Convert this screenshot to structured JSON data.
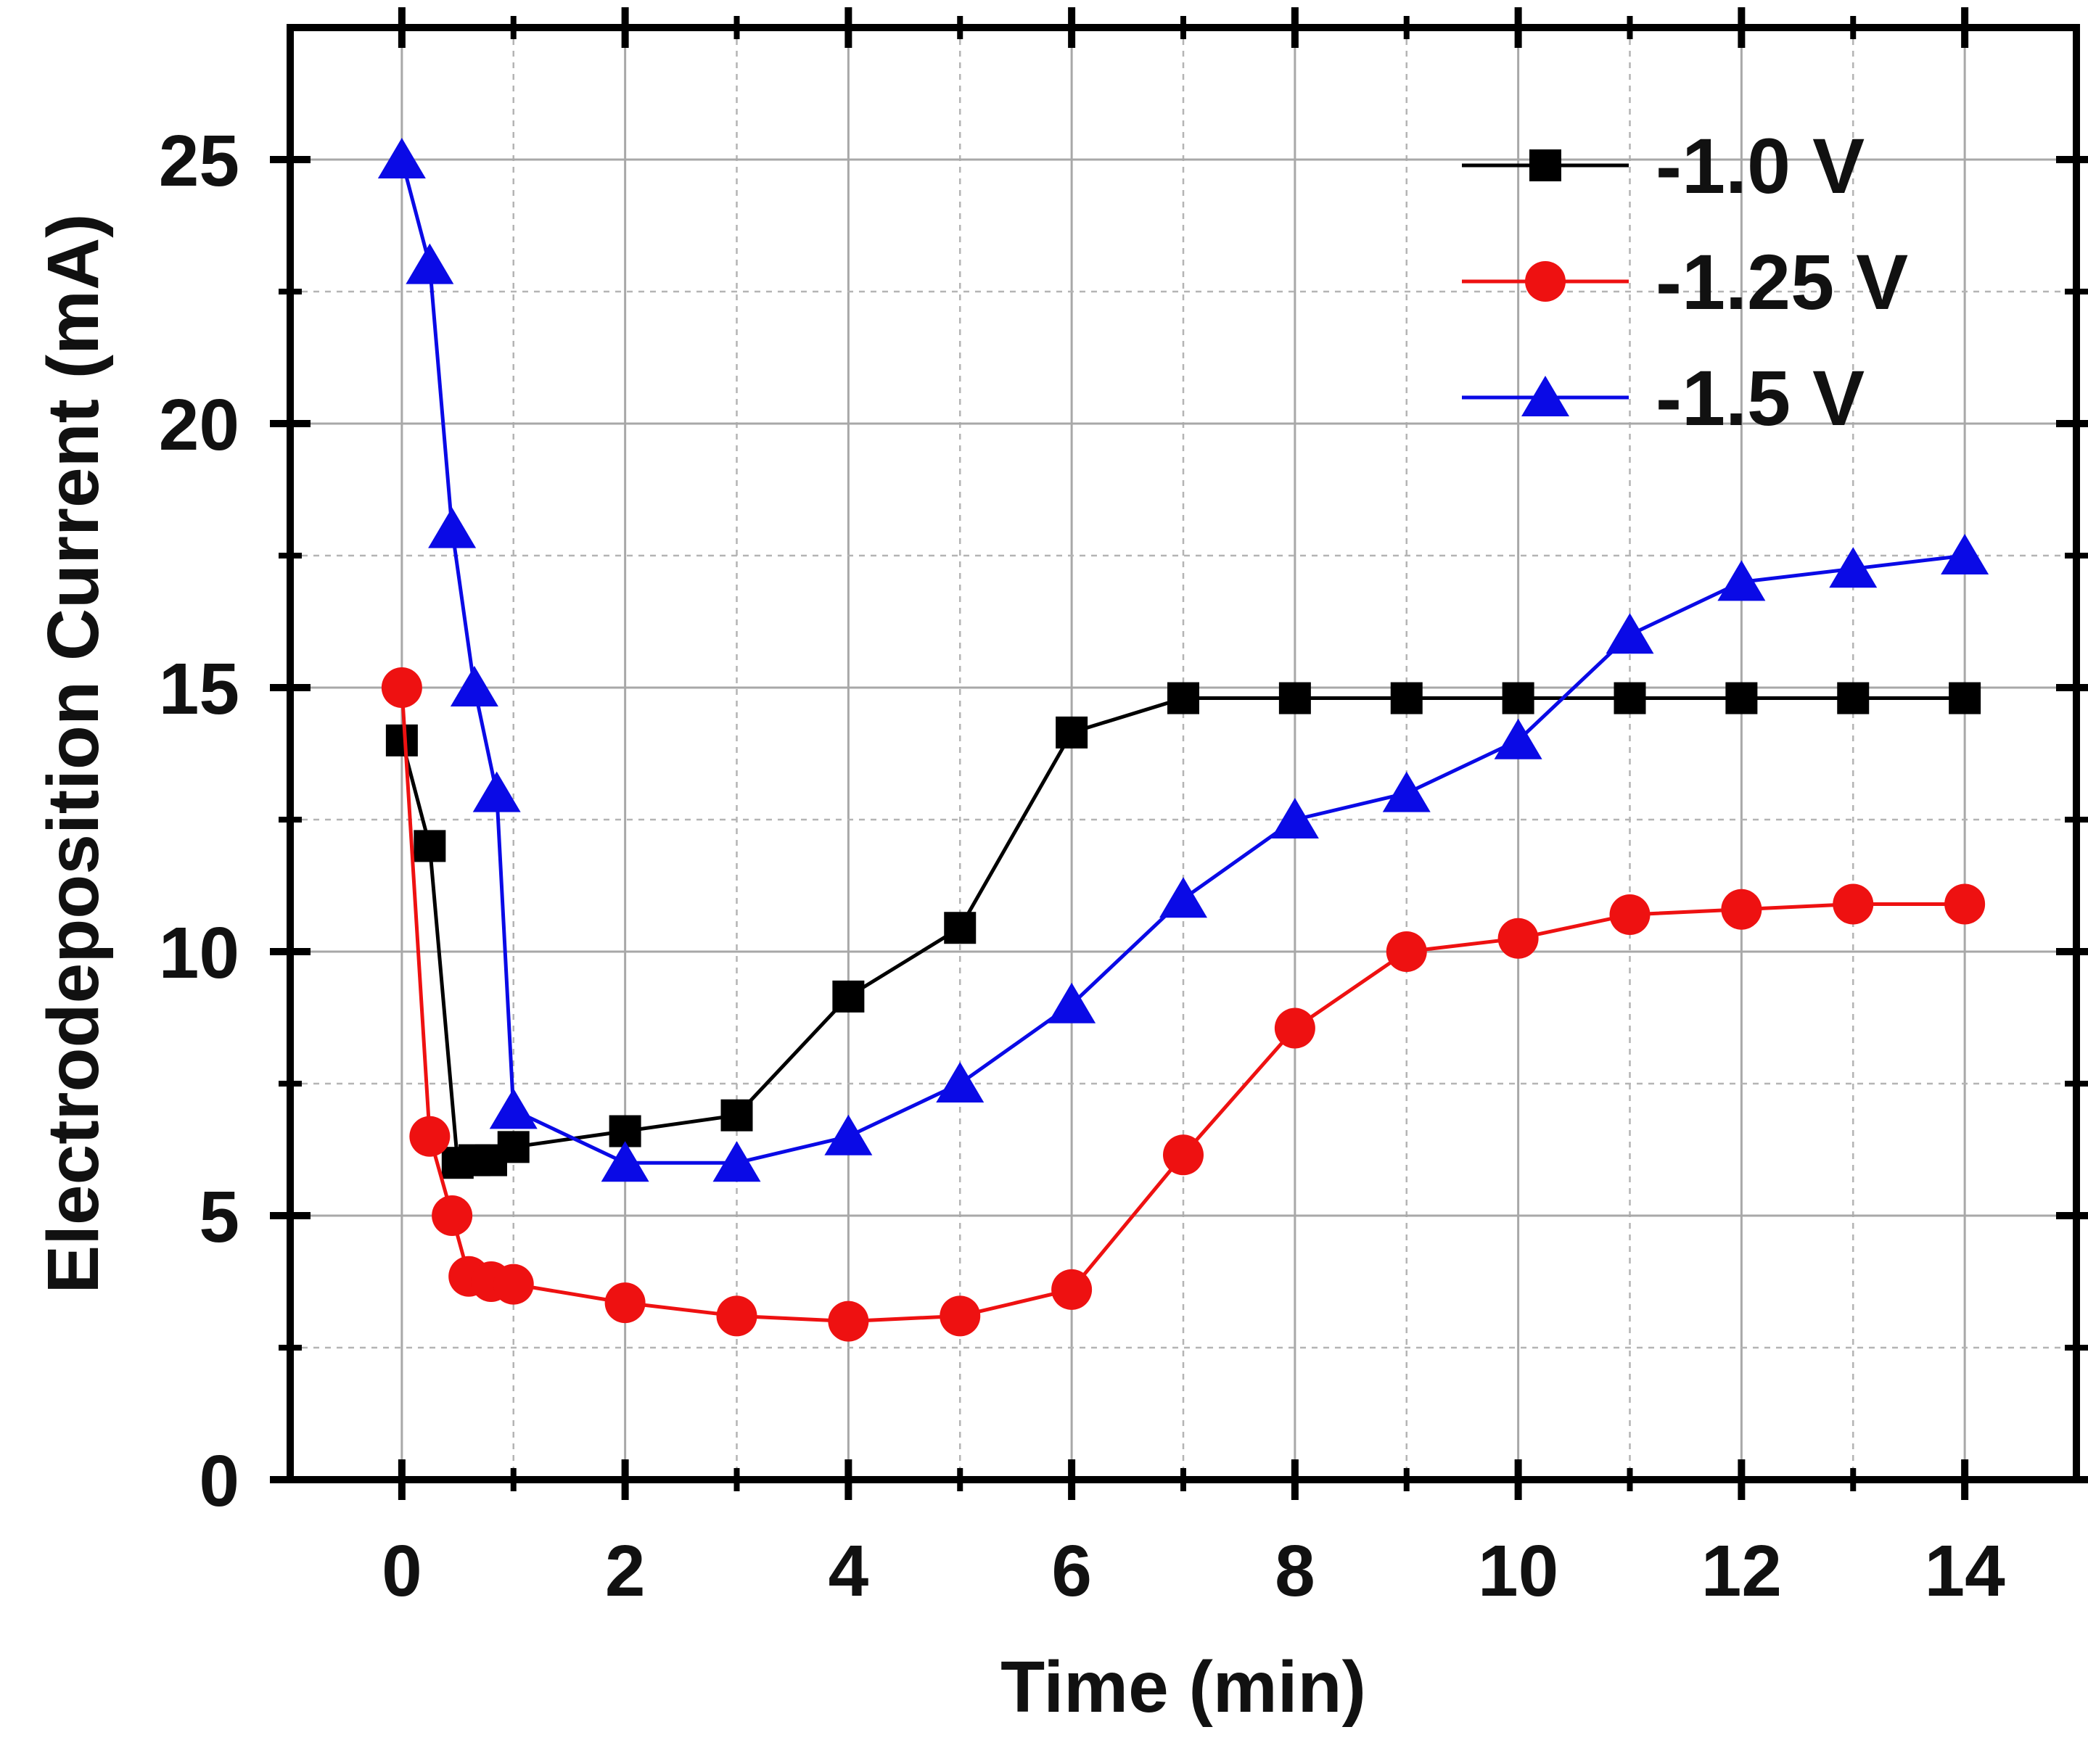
{
  "chart_data": {
    "type": "line",
    "title": "",
    "xlabel": "Time (min)",
    "ylabel": "Electrodeposition Current (mA)",
    "xlim": [
      -1,
      15
    ],
    "ylim": [
      0,
      27.5
    ],
    "xticks": [
      0,
      2,
      4,
      6,
      8,
      10,
      12,
      14
    ],
    "yticks": [
      0,
      5,
      10,
      15,
      20,
      25
    ],
    "x_minor_ticks": [
      1,
      3,
      5,
      7,
      9,
      11,
      13
    ],
    "y_minor_ticks": [
      2.5,
      7.5,
      12.5,
      17.5,
      22.5
    ],
    "grid": true,
    "legend_position": "top-right",
    "series": [
      {
        "name": "-1.0 V",
        "color": "#000000",
        "marker": "square",
        "x": [
          0,
          0.25,
          0.5,
          0.65,
          0.8,
          1,
          2,
          3,
          4,
          5,
          6,
          7,
          8,
          9,
          10,
          11,
          12,
          13,
          14
        ],
        "y": [
          14.0,
          12.0,
          6.0,
          6.05,
          6.05,
          6.3,
          6.6,
          6.9,
          9.15,
          10.45,
          14.15,
          14.8,
          14.8,
          14.8,
          14.8,
          14.8,
          14.8,
          14.8,
          14.8
        ]
      },
      {
        "name": "-1.25 V",
        "color": "#ee1111",
        "marker": "circle",
        "x": [
          0,
          0.25,
          0.45,
          0.6,
          0.8,
          1,
          2,
          3,
          4,
          5,
          6,
          7,
          8,
          9,
          10,
          11,
          12,
          13,
          14
        ],
        "y": [
          15.0,
          6.5,
          5.0,
          3.85,
          3.75,
          3.7,
          3.35,
          3.1,
          3.0,
          3.1,
          3.6,
          6.15,
          8.55,
          10.0,
          10.25,
          10.7,
          10.8,
          10.9,
          10.9
        ]
      },
      {
        "name": "-1.5 V",
        "color": "#0a0ae6",
        "marker": "triangle",
        "x": [
          0,
          0.25,
          0.45,
          0.65,
          0.85,
          1,
          2,
          3,
          4,
          5,
          6,
          7,
          8,
          9,
          10,
          11,
          12,
          13,
          14
        ],
        "y": [
          25.0,
          23.0,
          18.0,
          15.0,
          13.0,
          7.0,
          6.0,
          6.0,
          6.5,
          7.5,
          9.0,
          11.0,
          12.5,
          13.0,
          14.0,
          16.0,
          17.0,
          17.25,
          17.5
        ]
      }
    ]
  }
}
